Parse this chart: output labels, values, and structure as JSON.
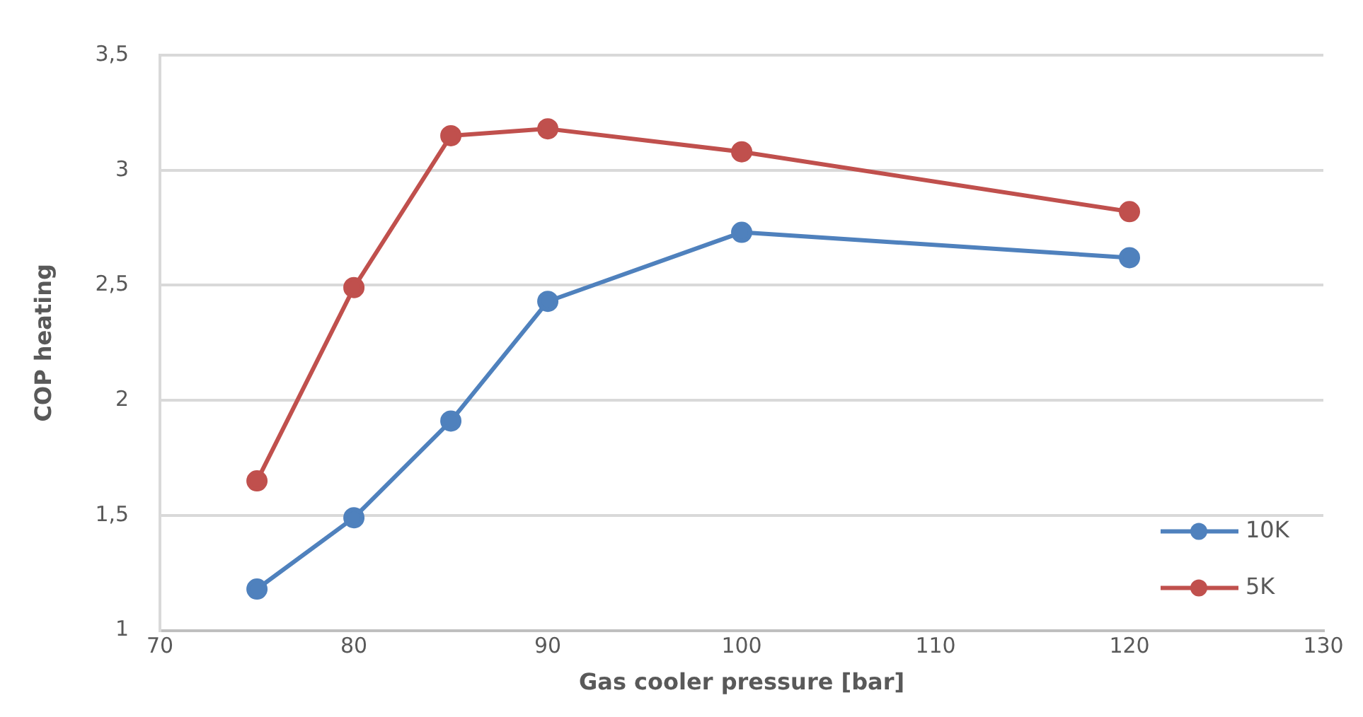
{
  "chart_data": {
    "type": "line",
    "xlabel": "Gas cooler pressure [bar]",
    "ylabel": "COP heating",
    "x": [
      75,
      80,
      85,
      90,
      100,
      120
    ],
    "series": [
      {
        "name": "10K",
        "color": "#4f81bd",
        "values": [
          1.18,
          1.49,
          1.91,
          2.43,
          2.73,
          2.62
        ]
      },
      {
        "name": "5K",
        "color": "#c0504d",
        "values": [
          1.65,
          2.49,
          3.15,
          3.18,
          3.08,
          2.82
        ]
      }
    ],
    "xlim": [
      70,
      130
    ],
    "xticks": [
      70,
      80,
      90,
      100,
      110,
      120,
      130
    ],
    "ylim": [
      1,
      3.5
    ],
    "yticks": [
      1,
      {
        "value": 1.5,
        "label": "1,5"
      },
      2,
      {
        "value": 2.5,
        "label": "2,5"
      },
      3,
      {
        "value": 3.5,
        "label": "3,5"
      }
    ],
    "grid": "y",
    "legend": "bottom right",
    "marker": "circle",
    "line_style": "solid"
  }
}
